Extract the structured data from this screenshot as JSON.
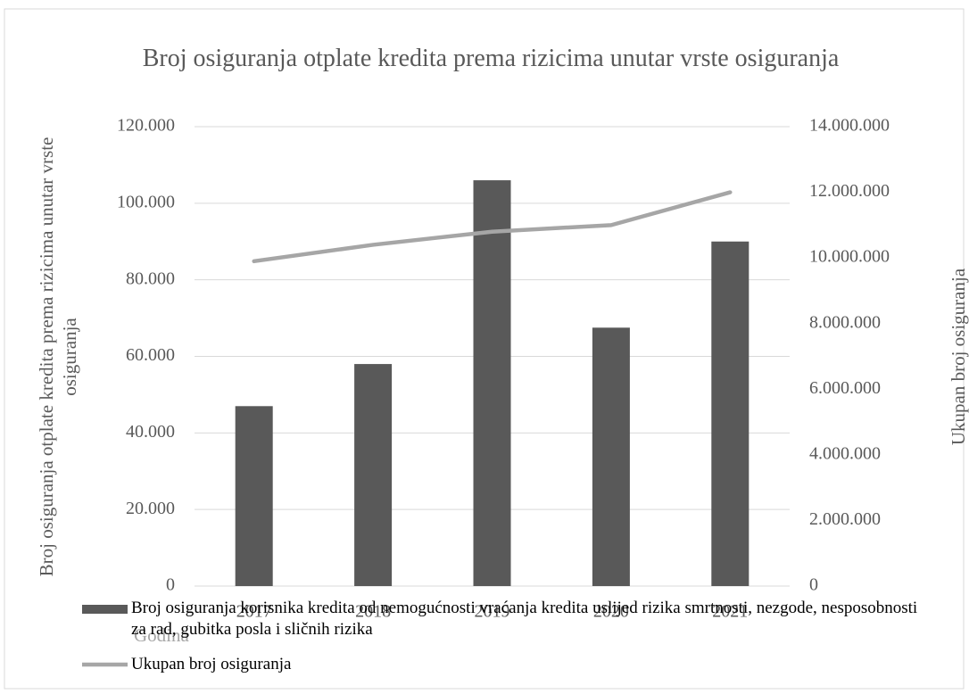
{
  "chart_data": {
    "type": "bar_line",
    "title": "Broj osiguranja otplate kredita prema rizicima unutar vrste osiguranja",
    "y_label": "Broj osiguranja otplate kredita prema rizicima unutar vrste osiguranja",
    "y2_label": "Ukupan broj osiguranja",
    "x_label": "Godina",
    "categories": [
      "2017",
      "2018",
      "2019",
      "2020",
      "2021"
    ],
    "series": [
      {
        "name": "Broj osiguranja korisnika kredita od nemogućnosti vraćanja kredita uslijed rizika smrtnosti, nezgode, nesposobnosti za rad, gubitka posla i sličnih rizika",
        "type": "bar",
        "color": "#595959",
        "values": [
          47000,
          58000,
          106000,
          67500,
          90000
        ]
      },
      {
        "name": "Ukupan broj osiguranja",
        "type": "line",
        "axis": "y2",
        "color": "#a6a6a6",
        "values": [
          9900000,
          10400000,
          10800000,
          11000000,
          12000000
        ]
      }
    ],
    "ylim": [
      0,
      120000
    ],
    "yticks": [
      0,
      {
        "value": 20000,
        "label": "20.000"
      },
      {
        "value": 40000,
        "label": "40.000"
      },
      {
        "value": 60000,
        "label": "60.000"
      },
      {
        "value": 80000,
        "label": "80.000"
      },
      {
        "value": 100000,
        "label": "100.000"
      },
      {
        "value": 120000,
        "label": "120.000"
      }
    ],
    "y2lim": [
      0,
      14000000
    ],
    "y2ticks": [
      0,
      {
        "value": 2000000,
        "label": "2.000.000"
      },
      {
        "value": 4000000,
        "label": "4.000.000"
      },
      {
        "value": 6000000,
        "label": "6.000.000"
      },
      {
        "value": 8000000,
        "label": "8.000.000"
      },
      {
        "value": 10000000,
        "label": "10.000.000"
      },
      {
        "value": 12000000,
        "label": "12.000.000"
      },
      {
        "value": 14000000,
        "label": "14.000.000"
      }
    ],
    "grid": true,
    "legend": "bottom"
  }
}
